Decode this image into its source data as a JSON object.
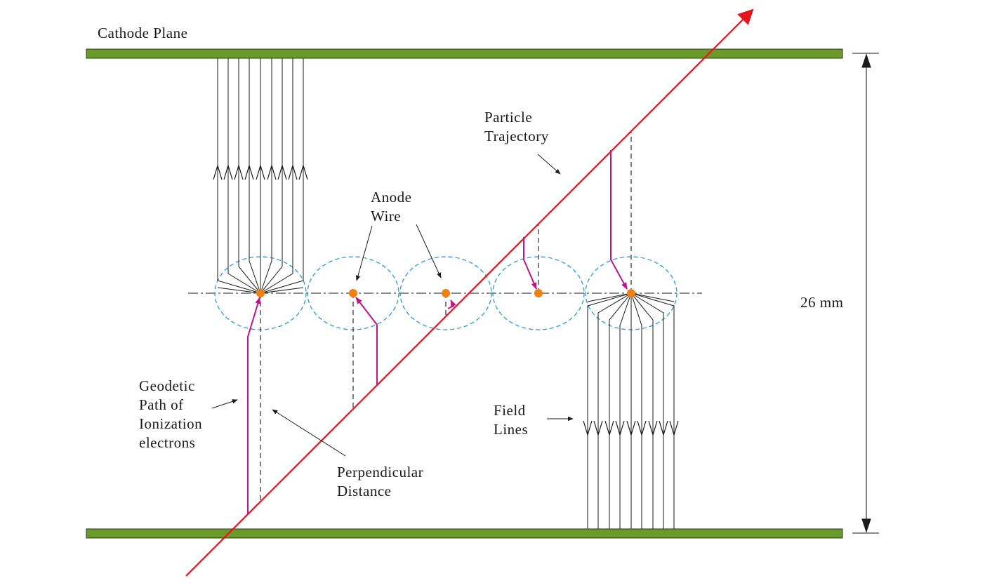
{
  "labels": {
    "cathode_plane": "Cathode Plane",
    "particle_trajectory_line1": "Particle",
    "particle_trajectory_line2": "Trajectory",
    "anode_wire_line1": "Anode",
    "anode_wire_line2": "Wire",
    "dimension": "26 mm",
    "geodetic_line1": "Geodetic",
    "geodetic_line2": "Path of",
    "geodetic_line3": "Ionization",
    "geodetic_line4": "electrons",
    "perpendicular_line1": "Perpendicular",
    "perpendicular_line2": "Distance",
    "field_lines_line1": "Field",
    "field_lines_line2": "Lines"
  },
  "colors": {
    "cathode_fill": "#6a9a2a",
    "trajectory": "#e8141c",
    "ionization_path": "#c0148c",
    "anode_wire": "#f08010",
    "drift_cell": "#2a9ad8",
    "lines": "#1a1a1a"
  }
}
